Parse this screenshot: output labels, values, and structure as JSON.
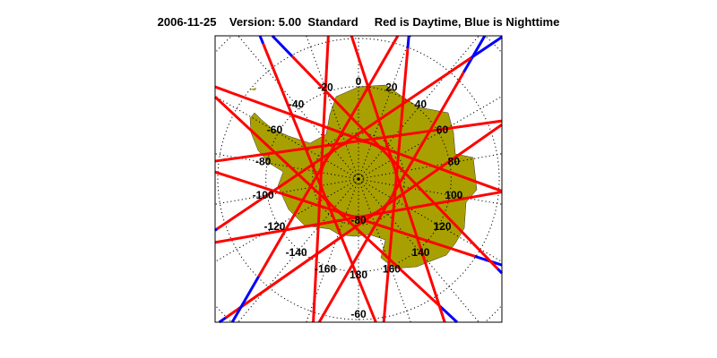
{
  "title": {
    "date": "2006-11-25",
    "version": "Version: 5.00",
    "mode": "Standard",
    "legend": "Red is Daytime, Blue is Nighttime"
  },
  "map": {
    "projection": "south polar stereographic",
    "land_color": "#a8a000",
    "day_color": "#ff0000",
    "night_color": "#0000ff",
    "longitude_labels": [
      "0",
      "20",
      "40",
      "60",
      "80",
      "100",
      "120",
      "140",
      "160",
      "180",
      "-160",
      "-140",
      "-120",
      "-100",
      "-80",
      "-60",
      "-40",
      "-20"
    ],
    "latitude_labels": [
      "-80",
      "-60"
    ],
    "latitude_circles": [
      -89,
      -80,
      -70,
      -60,
      -50
    ]
  }
}
